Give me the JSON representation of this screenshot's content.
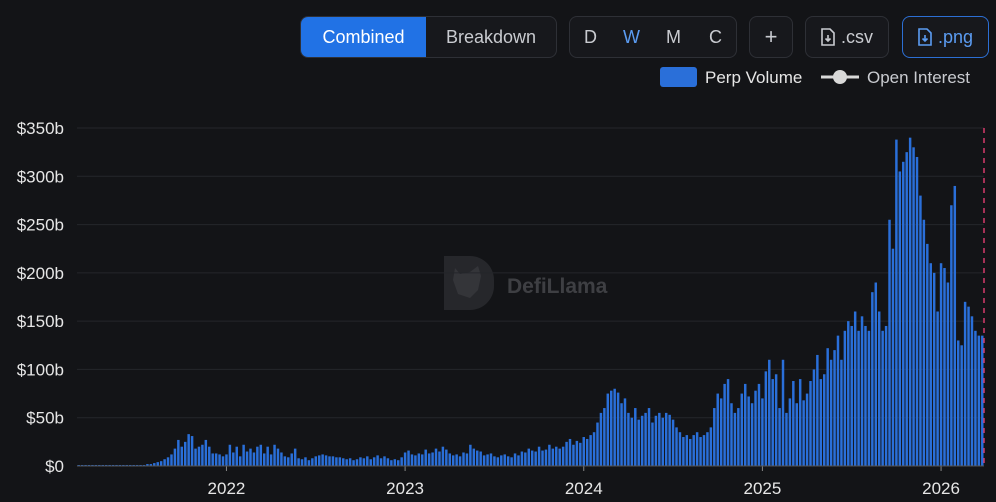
{
  "toolbar": {
    "views": [
      "Combined",
      "Breakdown"
    ],
    "active_view": 0,
    "intervals": [
      "D",
      "W",
      "M",
      "C"
    ],
    "active_interval": 1,
    "actions": [
      "+",
      ".csv",
      ".png"
    ]
  },
  "watermark": "DefiLlama",
  "chart_data": {
    "type": "bar",
    "legend_only": [
      "Open Interest"
    ],
    "categories": [
      null,
      null,
      null,
      null,
      null,
      null,
      null,
      null,
      null,
      null,
      null,
      null,
      null,
      null,
      null,
      null,
      null,
      null,
      null,
      null,
      null,
      null,
      null,
      null,
      null,
      null,
      null,
      null,
      null,
      null,
      null,
      null,
      null,
      null,
      null,
      null,
      null,
      null,
      null,
      null,
      null,
      null,
      null,
      "2022",
      null,
      null,
      null,
      null,
      null,
      null,
      null,
      null,
      null,
      null,
      null,
      null,
      null,
      null,
      null,
      null,
      null,
      null,
      null,
      null,
      null,
      null,
      null,
      null,
      null,
      null,
      null,
      null,
      null,
      null,
      null,
      null,
      null,
      null,
      null,
      null,
      null,
      null,
      null,
      null,
      null,
      null,
      null,
      null,
      null,
      null,
      null,
      null,
      null,
      null,
      null,
      "2023",
      null,
      null,
      null,
      null,
      null,
      null,
      null,
      null,
      null,
      null,
      null,
      null,
      null,
      null,
      null,
      null,
      null,
      null,
      null,
      null,
      null,
      null,
      null,
      null,
      null,
      null,
      null,
      null,
      null,
      null,
      null,
      null,
      null,
      null,
      null,
      null,
      null,
      null,
      null,
      null,
      null,
      null,
      null,
      null,
      null,
      null,
      null,
      null,
      null,
      null,
      null,
      "2024",
      null,
      null,
      null,
      null,
      null,
      null,
      null,
      null,
      null,
      null,
      null,
      null,
      null,
      null,
      null,
      null,
      null,
      null,
      null,
      null,
      null,
      null,
      null,
      null,
      null,
      null,
      null,
      null,
      null,
      null,
      null,
      null,
      null,
      null,
      null,
      null,
      null,
      null,
      null,
      null,
      null,
      null,
      null,
      null,
      null,
      null,
      null,
      null,
      null,
      null,
      null,
      "2025",
      null,
      null,
      null,
      null,
      null,
      null,
      null,
      null,
      null,
      null,
      null,
      null,
      null,
      null,
      null,
      null,
      null,
      null,
      null,
      null,
      null,
      null,
      null,
      null,
      null,
      null,
      null,
      null,
      null,
      null,
      null,
      null,
      null,
      null,
      null,
      null,
      null,
      null,
      null,
      null,
      null,
      null,
      null,
      null,
      null,
      null,
      null,
      null,
      null,
      null,
      null,
      "2026",
      null,
      null,
      null,
      null,
      null,
      null,
      null,
      null,
      null,
      null,
      null,
      null
    ],
    "series": [
      {
        "name": "Perp Volume",
        "color": "#2a6fd9",
        "values": [
          1,
          1,
          1,
          1,
          1,
          1,
          1,
          1,
          1,
          1,
          1,
          1,
          1,
          1,
          1,
          1,
          1,
          1,
          1,
          1,
          2,
          2,
          3,
          4,
          5,
          7,
          9,
          12,
          18,
          27,
          20,
          25,
          33,
          31,
          18,
          20,
          22,
          27,
          20,
          13,
          13,
          12,
          10,
          12,
          22,
          14,
          20,
          10,
          22,
          15,
          18,
          14,
          20,
          22,
          13,
          20,
          12,
          22,
          18,
          14,
          10,
          9,
          13,
          18,
          8,
          7,
          9,
          6,
          8,
          10,
          11,
          12,
          11,
          10,
          10,
          9,
          9,
          8,
          7,
          8,
          6,
          7,
          9,
          8,
          10,
          7,
          9,
          11,
          8,
          10,
          8,
          6,
          7,
          6,
          9,
          14,
          16,
          12,
          11,
          13,
          12,
          17,
          13,
          14,
          18,
          15,
          20,
          17,
          13,
          11,
          12,
          10,
          14,
          13,
          22,
          18,
          16,
          15,
          11,
          12,
          13,
          10,
          9,
          11,
          12,
          10,
          9,
          13,
          11,
          15,
          14,
          18,
          16,
          15,
          20,
          16,
          17,
          22,
          18,
          20,
          18,
          20,
          25,
          28,
          22,
          26,
          24,
          30,
          28,
          32,
          35,
          45,
          55,
          60,
          75,
          78,
          80,
          76,
          65,
          70,
          55,
          50,
          60,
          48,
          52,
          55,
          60,
          45,
          52,
          55,
          50,
          55,
          53,
          48,
          40,
          35,
          30,
          32,
          28,
          32,
          35,
          30,
          32,
          35,
          40,
          60,
          75,
          70,
          85,
          90,
          65,
          55,
          60,
          75,
          85,
          72,
          65,
          78,
          85,
          70,
          98,
          110,
          90,
          95,
          60,
          110,
          55,
          70,
          88,
          65,
          90,
          68,
          75,
          88,
          100,
          115,
          90,
          95,
          122,
          110,
          120,
          135,
          110,
          140,
          150,
          145,
          160,
          140,
          155,
          145,
          140,
          180,
          190,
          160,
          140,
          145,
          255,
          225,
          338,
          305,
          315,
          325,
          340,
          330,
          320,
          280,
          255,
          230,
          210,
          200,
          160,
          210,
          205,
          190,
          270,
          290,
          130,
          125,
          170,
          165,
          155,
          140,
          135,
          135
        ]
      }
    ],
    "ylim": [
      0,
      350
    ],
    "yticks": [
      {
        "value": 0,
        "label": "$0"
      },
      {
        "value": 50,
        "label": "$50b"
      },
      {
        "value": 100,
        "label": "$100b"
      },
      {
        "value": 150,
        "label": "$150b"
      },
      {
        "value": 200,
        "label": "$200b"
      },
      {
        "value": 250,
        "label": "$250b"
      },
      {
        "value": 300,
        "label": "$300b"
      },
      {
        "value": 350,
        "label": "$350b"
      }
    ],
    "grid": true
  }
}
